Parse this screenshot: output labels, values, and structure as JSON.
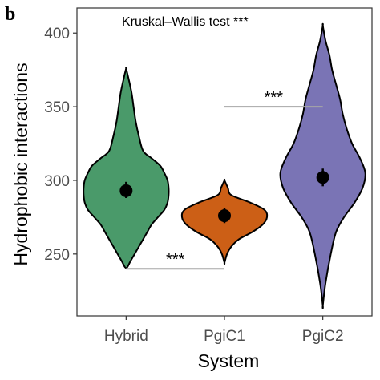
{
  "panel_label": "b",
  "chart_data": {
    "type": "violin",
    "annotation": "Kruskal–Wallis test ***",
    "xlabel": "System",
    "ylabel": "Hydrophobic interactions",
    "categories": [
      "Hybrid",
      "PgiC1",
      "PgiC2"
    ],
    "yticks": [
      250,
      300,
      350,
      400
    ],
    "ylim": [
      208,
      417
    ],
    "grid": false,
    "legend": "none",
    "colors": [
      "#4a9a6a",
      "#cc5f16",
      "#7a74b5"
    ],
    "series": [
      {
        "category": "Hybrid",
        "mean": 293,
        "ci": [
          288,
          299
        ],
        "density_profile": [
          [
            241,
            0.5
          ],
          [
            245,
            2
          ],
          [
            250,
            4
          ],
          [
            255,
            6
          ],
          [
            260,
            8
          ],
          [
            265,
            10
          ],
          [
            270,
            12
          ],
          [
            275,
            15
          ],
          [
            280,
            18
          ],
          [
            285,
            19.5
          ],
          [
            290,
            20
          ],
          [
            295,
            20
          ],
          [
            300,
            19.5
          ],
          [
            305,
            18
          ],
          [
            310,
            16
          ],
          [
            315,
            12
          ],
          [
            320,
            8
          ],
          [
            330,
            6
          ],
          [
            340,
            4.5
          ],
          [
            350,
            3.5
          ],
          [
            360,
            2.5
          ],
          [
            370,
            1
          ],
          [
            376,
            0
          ]
        ]
      },
      {
        "category": "PgiC1",
        "mean": 276,
        "ci": [
          271,
          281
        ],
        "density_profile": [
          [
            244,
            0
          ],
          [
            250,
            3
          ],
          [
            255,
            8
          ],
          [
            260,
            17
          ],
          [
            265,
            33
          ],
          [
            270,
            45
          ],
          [
            275,
            50
          ],
          [
            280,
            47
          ],
          [
            285,
            30
          ],
          [
            290,
            8
          ],
          [
            295,
            4
          ],
          [
            300,
            0
          ]
        ]
      },
      {
        "category": "PgiC2",
        "mean": 302,
        "ci": [
          296,
          308
        ],
        "density_profile": [
          [
            215,
            0
          ],
          [
            230,
            1
          ],
          [
            250,
            3
          ],
          [
            265,
            5
          ],
          [
            275,
            8
          ],
          [
            285,
            12
          ],
          [
            295,
            15
          ],
          [
            305,
            16
          ],
          [
            315,
            14
          ],
          [
            325,
            11
          ],
          [
            335,
            9
          ],
          [
            345,
            7.5
          ],
          [
            355,
            6.5
          ],
          [
            365,
            5
          ],
          [
            375,
            3.5
          ],
          [
            385,
            2.5
          ],
          [
            395,
            1
          ],
          [
            405,
            0
          ]
        ]
      }
    ],
    "comparisons": [
      {
        "from": "Hybrid",
        "to": "PgiC1",
        "y": 240,
        "label": "***"
      },
      {
        "from": "PgiC1",
        "to": "PgiC2",
        "y": 350,
        "label": "***"
      }
    ]
  }
}
